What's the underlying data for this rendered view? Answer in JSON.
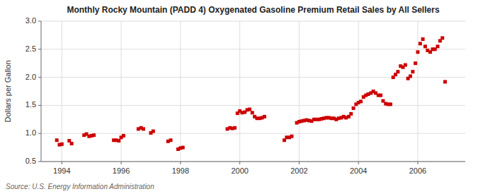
{
  "chart_data": {
    "type": "scatter",
    "title": "Monthly Rocky Mountain (PADD 4) Oxygenated Gasoline Premium Retail Sales by All Sellers",
    "ylabel": "Dollars per Gallon",
    "source": "Source: U.S. Energy Information Administration",
    "color": "#CC0000",
    "marker": "square",
    "grid": true,
    "xlim": [
      1993.3,
      2007.6
    ],
    "xticks": [
      1994,
      1996,
      1998,
      2000,
      2002,
      2004,
      2006
    ],
    "ylim": [
      0.5,
      3.0
    ],
    "yticks": [
      0.5,
      {
        "value": 1.0,
        "label": "1.0"
      },
      1.5,
      {
        "value": 2.0,
        "label": "2.0"
      },
      2.5,
      {
        "value": 3.0,
        "label": "3.0"
      }
    ],
    "x": [
      1993.83,
      1993.92,
      1994.0,
      1994.25,
      1994.33,
      1994.75,
      1994.83,
      1994.92,
      1995.0,
      1995.08,
      1995.75,
      1995.83,
      1995.92,
      1996.0,
      1996.08,
      1996.58,
      1996.67,
      1996.75,
      1997.0,
      1997.08,
      1997.58,
      1997.67,
      1997.92,
      1998.0,
      1998.08,
      1999.58,
      1999.67,
      1999.75,
      1999.83,
      1999.92,
      2000.0,
      2000.08,
      2000.17,
      2000.25,
      2000.33,
      2000.42,
      2000.5,
      2000.58,
      2000.67,
      2000.75,
      2000.83,
      2001.5,
      2001.58,
      2001.67,
      2001.75,
      2001.92,
      2002.0,
      2002.08,
      2002.17,
      2002.25,
      2002.33,
      2002.42,
      2002.5,
      2002.58,
      2002.67,
      2002.75,
      2002.83,
      2002.92,
      2003.0,
      2003.08,
      2003.17,
      2003.25,
      2003.33,
      2003.42,
      2003.5,
      2003.58,
      2003.67,
      2003.75,
      2003.83,
      2003.92,
      2004.0,
      2004.08,
      2004.17,
      2004.25,
      2004.33,
      2004.42,
      2004.5,
      2004.58,
      2004.67,
      2004.75,
      2004.83,
      2004.92,
      2005.0,
      2005.08,
      2005.17,
      2005.25,
      2005.33,
      2005.42,
      2005.5,
      2005.58,
      2005.67,
      2005.75,
      2005.83,
      2005.92,
      2006.0,
      2006.08,
      2006.17,
      2006.25,
      2006.33,
      2006.42,
      2006.5,
      2006.58,
      2006.67,
      2006.75,
      2006.83,
      2006.92
    ],
    "values": [
      0.88,
      0.8,
      0.81,
      0.87,
      0.82,
      0.97,
      0.99,
      0.95,
      0.96,
      0.97,
      0.88,
      0.88,
      0.87,
      0.93,
      0.96,
      1.08,
      1.1,
      1.08,
      1.01,
      1.04,
      0.86,
      0.88,
      0.72,
      0.74,
      0.75,
      1.08,
      1.1,
      1.09,
      1.1,
      1.36,
      1.4,
      1.37,
      1.38,
      1.42,
      1.43,
      1.37,
      1.3,
      1.27,
      1.27,
      1.28,
      1.3,
      0.88,
      0.93,
      0.93,
      0.95,
      1.19,
      1.21,
      1.22,
      1.23,
      1.24,
      1.23,
      1.22,
      1.25,
      1.25,
      1.25,
      1.26,
      1.27,
      1.28,
      1.28,
      1.27,
      1.27,
      1.25,
      1.27,
      1.28,
      1.3,
      1.28,
      1.3,
      1.35,
      1.45,
      1.52,
      1.55,
      1.57,
      1.65,
      1.68,
      1.7,
      1.72,
      1.75,
      1.72,
      1.68,
      1.68,
      1.58,
      1.53,
      1.52,
      1.52,
      2.0,
      2.05,
      2.1,
      2.2,
      2.18,
      2.22,
      1.98,
      2.02,
      2.1,
      2.25,
      2.45,
      2.6,
      2.68,
      2.55,
      2.48,
      2.45,
      2.5,
      2.5,
      2.55,
      2.65,
      2.7,
      1.92
    ]
  }
}
